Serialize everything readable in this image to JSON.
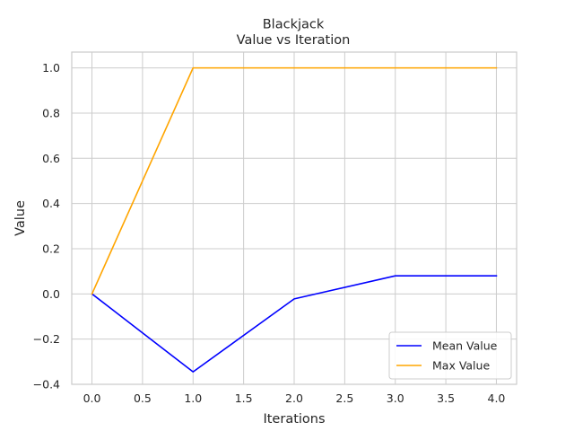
{
  "chart_data": {
    "type": "line",
    "title": "Blackjack",
    "subtitle": "Value vs Iteration",
    "xlabel": "Iterations",
    "ylabel": "Value",
    "x": [
      0,
      1,
      2,
      3,
      4
    ],
    "series": [
      {
        "name": "Mean Value",
        "color": "#0000ff",
        "values": [
          0.0,
          -0.345,
          -0.022,
          0.08,
          0.08
        ]
      },
      {
        "name": "Max Value",
        "color": "#ffa500",
        "values": [
          0.0,
          1.0,
          1.0,
          1.0,
          1.0
        ]
      }
    ],
    "xlim": [
      -0.2,
      4.2
    ],
    "ylim": [
      -0.4,
      1.07
    ],
    "xticks": [
      "0.0",
      "0.5",
      "1.0",
      "1.5",
      "2.0",
      "2.5",
      "3.0",
      "3.5",
      "4.0"
    ],
    "xtick_values": [
      0,
      0.5,
      1,
      1.5,
      2,
      2.5,
      3,
      3.5,
      4
    ],
    "yticks": [
      "−0.4",
      "−0.2",
      "0.0",
      "0.2",
      "0.4",
      "0.6",
      "0.8",
      "1.0"
    ],
    "ytick_values": [
      -0.4,
      -0.2,
      0,
      0.2,
      0.4,
      0.6,
      0.8,
      1.0
    ],
    "grid": true,
    "legend_position": "lower-right"
  }
}
